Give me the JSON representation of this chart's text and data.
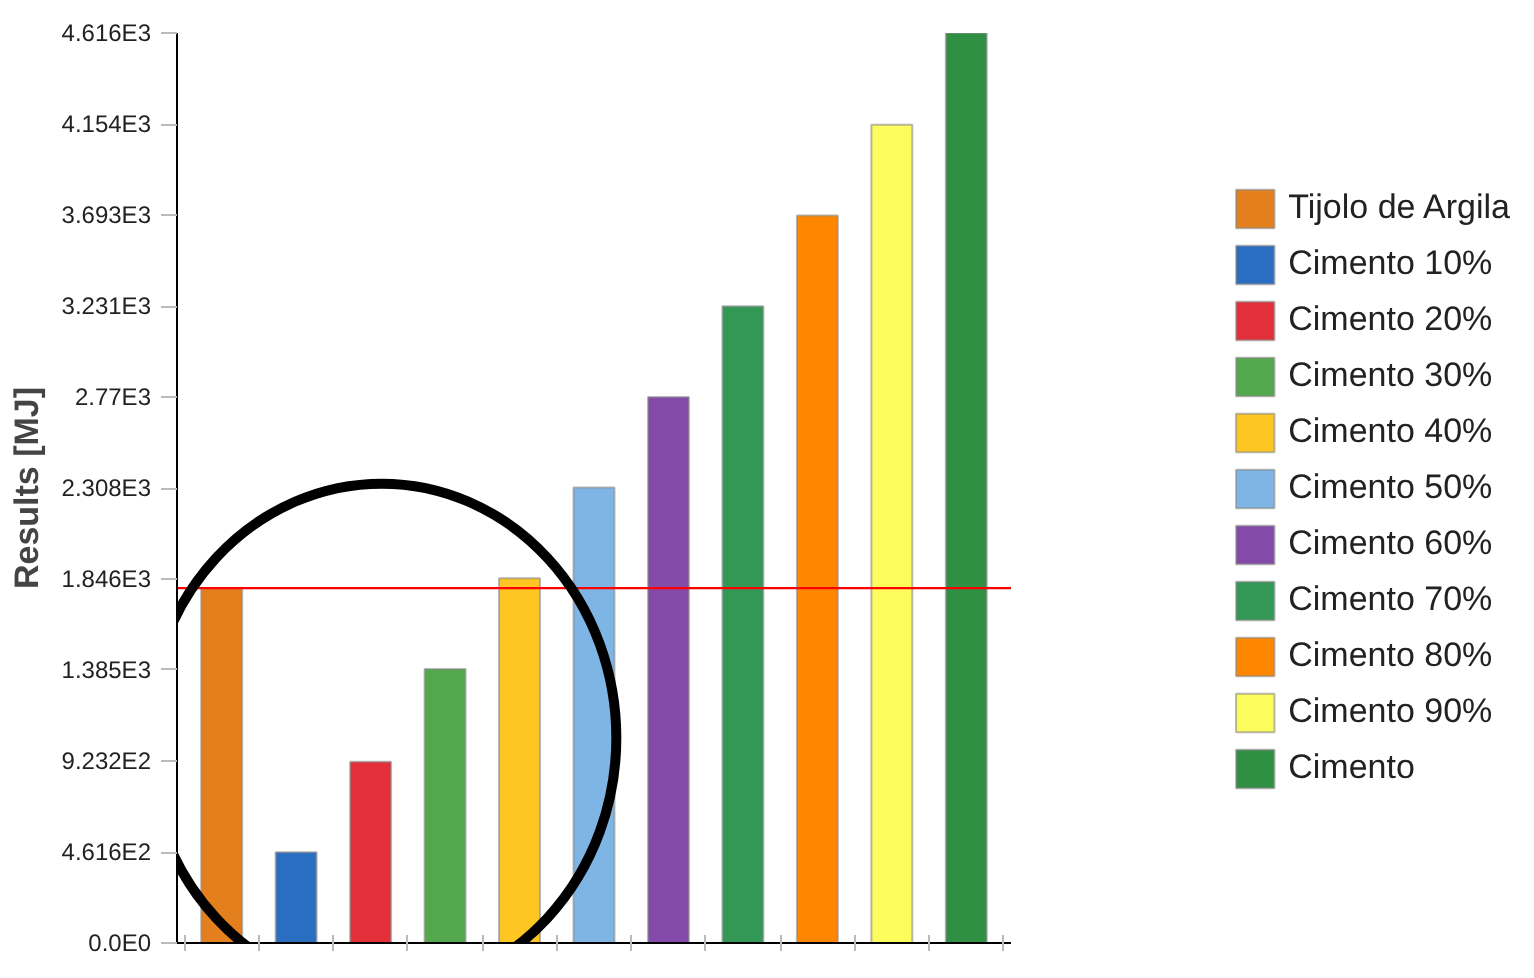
{
  "chart_data": {
    "type": "bar",
    "ylabel": "Results [MJ]",
    "categories": [
      null
    ],
    "ylim": [
      0,
      4616
    ],
    "yticks": [
      {
        "value": 0,
        "label": "0.0E0"
      },
      {
        "value": 461.6,
        "label": "4.616E2"
      },
      {
        "value": 923.2,
        "label": "9.232E2"
      },
      {
        "value": 1385,
        "label": "1.385E3"
      },
      {
        "value": 1846,
        "label": "1.846E3"
      },
      {
        "value": 2308,
        "label": "2.308E3"
      },
      {
        "value": 2770,
        "label": "2.77E3"
      },
      {
        "value": 3231,
        "label": "3.231E3"
      },
      {
        "value": 3693,
        "label": "3.693E3"
      },
      {
        "value": 4154,
        "label": "4.154E3"
      },
      {
        "value": 4616,
        "label": "4.616E3"
      }
    ],
    "series": [
      {
        "name": "Tijolo de Argila",
        "color": "#e47f1e",
        "values": [
          1800
        ]
      },
      {
        "name": "Cimento 10%",
        "color": "#2a6ec2",
        "values": [
          460
        ]
      },
      {
        "name": "Cimento 20%",
        "color": "#e32f3a",
        "values": [
          920
        ]
      },
      {
        "name": "Cimento 30%",
        "color": "#53a84d",
        "values": [
          1390
        ]
      },
      {
        "name": "Cimento 40%",
        "color": "#fec623",
        "values": [
          1850
        ]
      },
      {
        "name": "Cimento 50%",
        "color": "#7fb5e4",
        "values": [
          2310
        ]
      },
      {
        "name": "Cimento 60%",
        "color": "#844aa9",
        "values": [
          2770
        ]
      },
      {
        "name": "Cimento 70%",
        "color": "#339855",
        "values": [
          3230
        ]
      },
      {
        "name": "Cimento 80%",
        "color": "#fe8600",
        "values": [
          3690
        ]
      },
      {
        "name": "Cimento 90%",
        "color": "#fdfc5d",
        "values": [
          4150
        ]
      },
      {
        "name": "Cimento",
        "color": "#2f8f42",
        "values": [
          4616
        ]
      }
    ],
    "ref_lines": [
      {
        "axis": "y",
        "value": 1800,
        "color": "#ff0000"
      }
    ],
    "legend": "right",
    "grid": false
  }
}
